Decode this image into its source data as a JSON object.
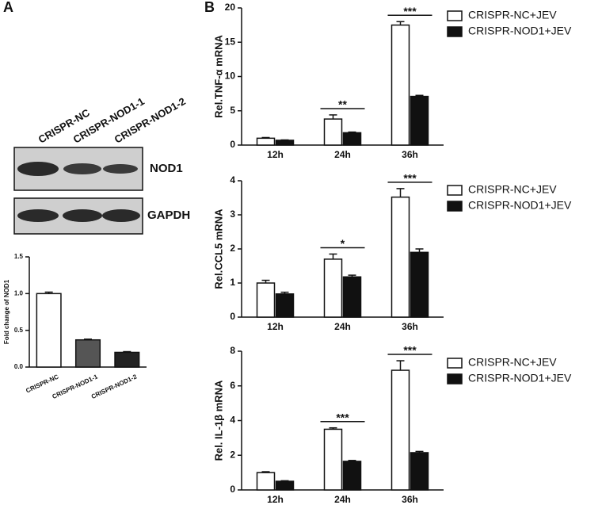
{
  "panel_labels": [
    "A",
    "B"
  ],
  "blot": {
    "lanes": [
      "CRISPR-NC",
      "CRISPR-NOD1-1",
      "CRISPR-NOD1-2"
    ],
    "bands": [
      "NOD1",
      "GAPDH"
    ]
  },
  "chart_data": [
    {
      "type": "bar",
      "y_label": "Fold change of NOD1",
      "categories": [
        "CRISPR-NC",
        "CRISPR-NOD1-1",
        "CRISPR-NOD1-2"
      ],
      "values": [
        1.0,
        0.37,
        0.2
      ],
      "errors": [
        0.02,
        0.01,
        0.01
      ],
      "colors": [
        "#ffffff",
        "#555555",
        "#222222"
      ],
      "ylim": [
        0,
        1.5
      ],
      "yticks": [
        {
          "value": 0,
          "label": "0.0"
        },
        {
          "value": 0.5,
          "label": "0.5"
        },
        {
          "value": 1.0,
          "label": "1.0"
        },
        {
          "value": 1.5,
          "label": "1.5"
        }
      ]
    },
    {
      "type": "bar",
      "y_label": "Rel.TNF-α mRNA",
      "categories": [
        "12h",
        "24h",
        "36h"
      ],
      "series": [
        {
          "name": "CRISPR-NC+JEV",
          "color": "#ffffff",
          "values": [
            1.0,
            3.8,
            17.5
          ],
          "errors": [
            0.1,
            0.6,
            0.5
          ]
        },
        {
          "name": "CRISPR-NOD1+JEV",
          "color": "#111111",
          "values": [
            0.7,
            1.8,
            7.1
          ],
          "errors": [
            0.05,
            0.1,
            0.15
          ]
        }
      ],
      "significance": [
        null,
        "**",
        "***"
      ],
      "ylim": [
        0,
        20
      ],
      "yticks": [
        0,
        5,
        10,
        15,
        20
      ]
    },
    {
      "type": "bar",
      "y_label": "Rel.CCL5 mRNA",
      "categories": [
        "12h",
        "24h",
        "36h"
      ],
      "series": [
        {
          "name": "CRISPR-NC+JEV",
          "color": "#ffffff",
          "values": [
            1.0,
            1.7,
            3.52
          ],
          "errors": [
            0.08,
            0.15,
            0.25
          ]
        },
        {
          "name": "CRISPR-NOD1+JEV",
          "color": "#111111",
          "values": [
            0.68,
            1.18,
            1.9
          ],
          "errors": [
            0.05,
            0.05,
            0.1
          ]
        }
      ],
      "significance": [
        null,
        "*",
        "***"
      ],
      "ylim": [
        0,
        4
      ],
      "yticks": [
        0,
        1,
        2,
        3,
        4
      ]
    },
    {
      "type": "bar",
      "y_label": "Rel. IL-1β mRNA",
      "categories": [
        "12h",
        "24h",
        "36h"
      ],
      "series": [
        {
          "name": "CRISPR-NC+JEV",
          "color": "#ffffff",
          "values": [
            1.0,
            3.5,
            6.9
          ],
          "errors": [
            0.05,
            0.08,
            0.55
          ]
        },
        {
          "name": "CRISPR-NOD1+JEV",
          "color": "#111111",
          "values": [
            0.5,
            1.65,
            2.15
          ],
          "errors": [
            0.03,
            0.05,
            0.07
          ]
        }
      ],
      "significance": [
        null,
        "***",
        "***"
      ],
      "ylim": [
        0,
        8
      ],
      "yticks": [
        0,
        2,
        4,
        6,
        8
      ]
    }
  ]
}
